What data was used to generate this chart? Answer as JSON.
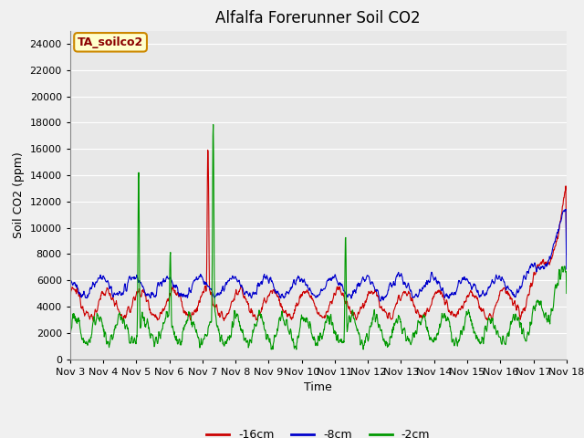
{
  "title": "Alfalfa Forerunner Soil CO2",
  "xlabel": "Time",
  "ylabel": "Soil CO2 (ppm)",
  "ylim": [
    0,
    25000
  ],
  "yticks": [
    0,
    2000,
    4000,
    6000,
    8000,
    10000,
    12000,
    14000,
    16000,
    18000,
    20000,
    22000,
    24000
  ],
  "xtick_labels": [
    "Nov 3",
    "Nov 4",
    "Nov 5",
    "Nov 6",
    "Nov 7",
    "Nov 8",
    "Nov 9",
    "Nov 10",
    "Nov 11",
    "Nov 12",
    "Nov 13",
    "Nov 14",
    "Nov 15",
    "Nov 16",
    "Nov 17",
    "Nov 18"
  ],
  "legend_labels": [
    "-16cm",
    "-8cm",
    "-2cm"
  ],
  "line_colors": {
    "d16": "#cc0000",
    "d8": "#0000cc",
    "d2": "#009900"
  },
  "annotation_text": "TA_soilco2",
  "annotation_bg": "#ffffcc",
  "annotation_border": "#cc8800",
  "fig_bg_color": "#f0f0f0",
  "plot_bg_color": "#e8e8e8",
  "grid_color": "#ffffff",
  "title_fontsize": 12,
  "axis_label_fontsize": 9,
  "tick_fontsize": 8,
  "legend_fontsize": 9
}
